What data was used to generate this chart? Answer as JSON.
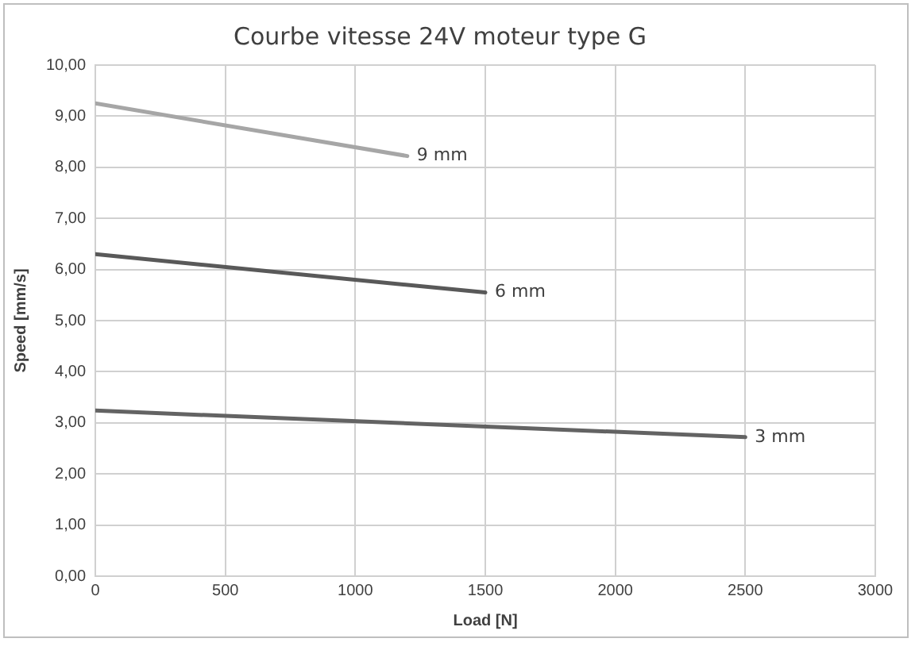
{
  "chart_data": {
    "type": "line",
    "title": "Courbe vitesse 24V moteur type G",
    "xlabel": "Load [N]",
    "ylabel": "Speed [mm/s]",
    "series": [
      {
        "name": "9 mm",
        "color": "#a6a6a6",
        "x": [
          0,
          1200
        ],
        "values": [
          9.25,
          8.22
        ]
      },
      {
        "name": "6 mm",
        "color": "#595959",
        "x": [
          0,
          1500
        ],
        "values": [
          6.3,
          5.55
        ]
      },
      {
        "name": "3 mm",
        "color": "#636363",
        "x": [
          0,
          2500
        ],
        "values": [
          3.24,
          2.72
        ]
      }
    ],
    "xlim": [
      0,
      3000
    ],
    "xticks": [
      0,
      500,
      1000,
      1500,
      2000,
      2500,
      3000
    ],
    "ylim": [
      0,
      10
    ],
    "yticks": [
      {
        "value": 0,
        "label": "0,00"
      },
      {
        "value": 1,
        "label": "1,00"
      },
      {
        "value": 2,
        "label": "2,00"
      },
      {
        "value": 3,
        "label": "3,00"
      },
      {
        "value": 4,
        "label": "4,00"
      },
      {
        "value": 5,
        "label": "5,00"
      },
      {
        "value": 6,
        "label": "6,00"
      },
      {
        "value": 7,
        "label": "7,00"
      },
      {
        "value": 8,
        "label": "8,00"
      },
      {
        "value": 9,
        "label": "9,00"
      },
      {
        "value": 10,
        "label": "10,00"
      }
    ],
    "grid": true,
    "legend": false,
    "marker": "none",
    "line_style": "solid"
  }
}
